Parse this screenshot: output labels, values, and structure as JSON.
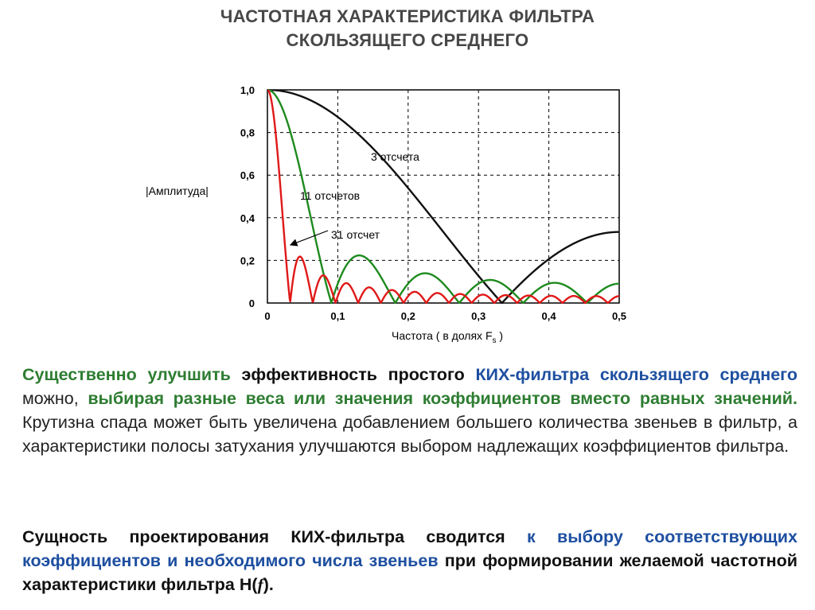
{
  "title": {
    "line1": "ЧАСТОТНАЯ ХАРАКТЕРИСТИКА ФИЛЬТРА",
    "line2": "СКОЛЬЗЯЩЕГО СРЕДНЕГО"
  },
  "chart_data": {
    "type": "line",
    "ylabel": "|Амплитуда|",
    "xlabel": "Частота  ( в долях F",
    "xlabel_sub": "s",
    "xlabel_end": " )",
    "xlim": [
      0,
      0.5
    ],
    "ylim": [
      0,
      1.0
    ],
    "xticks": [
      "0",
      "0,1",
      "0,2",
      "0,3",
      "0,4",
      "0,5"
    ],
    "yticks": [
      "0",
      "0,2",
      "0,4",
      "0,6",
      "0,8",
      "1,0"
    ],
    "grid": "dashed",
    "series": [
      {
        "name": "3 отсчета",
        "N": 3,
        "color": "#111111"
      },
      {
        "name": "11 отсчетов",
        "N": 11,
        "color": "#1e8a1e"
      },
      {
        "name": "31 отсчет",
        "N": 31,
        "color": "#e01818"
      }
    ],
    "annotations": [
      {
        "text": "3 отсчета"
      },
      {
        "text": "11 отсчетов"
      },
      {
        "text": "31 отсчет"
      }
    ]
  },
  "text": {
    "p1_s1": "Существенно улучшить",
    "p1_s2": " эффективность простого ",
    "p1_s3": "КИХ-фильтра скользящего среднего",
    "p1_s4": " можно, ",
    "p1_s5": "выбирая разные веса или значения коэффициентов вместо равных значений.",
    "p1_s6": " Крутизна спада может быть увеличена добавлением большего количества звеньев в фильтр, а характеристики полосы затухания улучшаются выбором надлежащих коэффициентов фильтра.",
    "p2_s1": "Сущность проектирования КИХ-фильтра сводится",
    "p2_s2": " к выбору соответствующих коэффициентов и необходимого числа звеньев",
    "p2_s3": " при формировании желаемой частотной характеристики фильтра Н(",
    "p2_s4": "f",
    "p2_s5": ")."
  }
}
